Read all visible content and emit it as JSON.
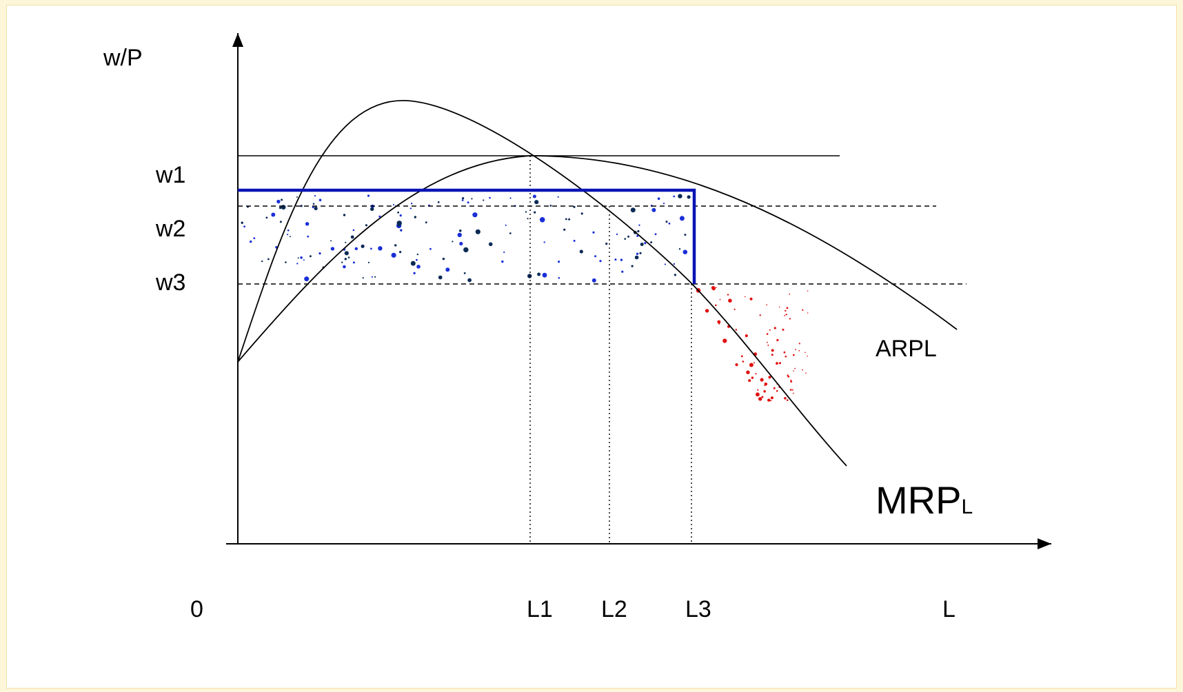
{
  "labels": {
    "y_axis": "w/P",
    "origin": "0",
    "x_axis": "L",
    "w1": "w1",
    "w2": "w2",
    "w3": "w3",
    "L1": "L1",
    "L2": "L2",
    "L3": "L3",
    "arpl": "ARPL",
    "mrpl_main": "MRP",
    "mrpl_sub": "L"
  },
  "colors": {
    "curve": "#000000",
    "wage_rect": "#0a14b4",
    "blue_dots": "#1a2fd6",
    "navy_dots": "#0b2a55",
    "red_dots": "#e01010",
    "frame_bg": "#fdf6d9"
  }
}
